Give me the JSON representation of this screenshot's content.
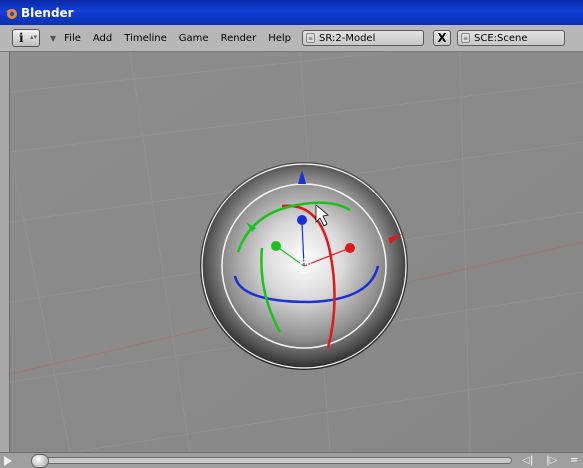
{
  "window": {
    "title": "Blender"
  },
  "header": {
    "info_button": "i",
    "menu": [
      "File",
      "Add",
      "Timeline",
      "Game",
      "Render",
      "Help"
    ],
    "screen_field": "SR:2-Model",
    "delete_label": "X",
    "scene_field": "SCE:Scene"
  },
  "viewport": {
    "object": "sphere",
    "gizmo": "rotate-manipulator",
    "accent_colors": {
      "x_axis": "#e01818",
      "y_axis": "#1cc21c",
      "z_axis": "#1a2fd6",
      "trackball": "#f4f4f4"
    }
  },
  "timeline": {
    "play_icon": "play-icon",
    "buttons": [
      "step-back-icon",
      "step-forward-icon"
    ]
  }
}
